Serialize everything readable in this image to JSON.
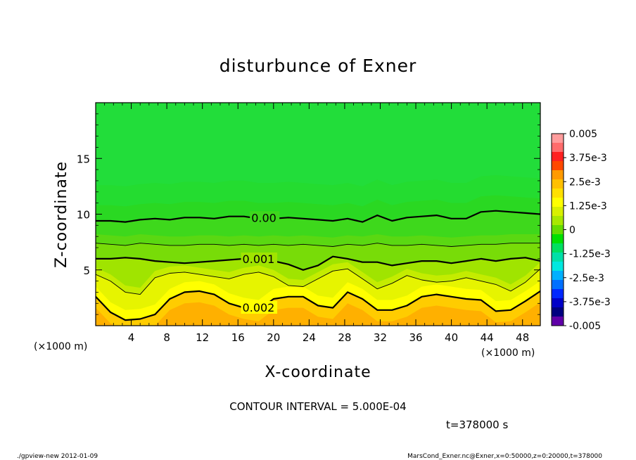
{
  "chart_data": {
    "type": "contour",
    "title": "disturbunce of Exner",
    "xlabel": "X-coordinate",
    "ylabel": "Z-coordinate",
    "x_unit_label_left": "(×1000 m)",
    "x_unit_label_right": "(×1000 m)",
    "xlim": [
      0,
      50
    ],
    "ylim": [
      0,
      20
    ],
    "x_ticks": [
      "4",
      "8",
      "12",
      "16",
      "20",
      "24",
      "28",
      "32",
      "36",
      "40",
      "44",
      "48"
    ],
    "y_ticks": [
      "5",
      "10",
      "15"
    ],
    "contour_interval_text": "CONTOUR INTERVAL = 5.000E-04",
    "time_text": "t=378000 s",
    "contour_labels": [
      "0.00",
      "0.001",
      "0.002"
    ],
    "colorbar": {
      "labels": [
        "0.005",
        "3.75e-3",
        "2.5e-3",
        "1.25e-3",
        "0",
        "-1.25e-3",
        "-2.5e-3",
        "-3.75e-3",
        "-0.005"
      ],
      "colors": [
        "#ff9c9c",
        "#ff6c6c",
        "#ff2020",
        "#ff4800",
        "#ff9a00",
        "#ffc000",
        "#ffe000",
        "#ffff00",
        "#d8f000",
        "#a8e800",
        "#64dc00",
        "#00e000",
        "#00e060",
        "#00e0a8",
        "#00e8e0",
        "#00b0ff",
        "#0070ff",
        "#0028ff",
        "#0000c8",
        "#000080",
        "#6000a8"
      ]
    },
    "contour_levels": [
      {
        "value": 0.0,
        "z": [
          9.4,
          9.4,
          9.3,
          9.5,
          9.6,
          9.5,
          9.7,
          9.7,
          9.6,
          9.8,
          9.8,
          9.6,
          9.6,
          9.7,
          9.6,
          9.5,
          9.4,
          9.6,
          9.3,
          9.9,
          9.4,
          9.7,
          9.8,
          9.9,
          9.6,
          9.6,
          10.2,
          10.3,
          10.2,
          10.1,
          10.0
        ],
        "highlight": true,
        "label": "0.00",
        "label_x": 17.5
      },
      {
        "value": 0.0005,
        "z": [
          7.4,
          7.3,
          7.2,
          7.4,
          7.3,
          7.2,
          7.2,
          7.3,
          7.3,
          7.2,
          7.3,
          7.2,
          7.3,
          7.2,
          7.3,
          7.2,
          7.1,
          7.3,
          7.2,
          7.4,
          7.2,
          7.2,
          7.3,
          7.2,
          7.1,
          7.2,
          7.3,
          7.3,
          7.4,
          7.4,
          7.4
        ],
        "highlight": false
      },
      {
        "value": 0.001,
        "z": [
          6.0,
          6.0,
          6.1,
          6.0,
          5.8,
          5.7,
          5.6,
          5.7,
          5.8,
          5.9,
          6.0,
          5.9,
          5.8,
          5.5,
          5.0,
          5.4,
          6.2,
          6.0,
          5.7,
          5.7,
          5.4,
          5.6,
          5.8,
          5.8,
          5.6,
          5.8,
          6.0,
          5.8,
          6.0,
          6.1,
          5.8
        ],
        "highlight": true,
        "label": "0.001",
        "label_x": 16.5
      },
      {
        "value": 0.0015,
        "z": [
          4.6,
          4.0,
          3.0,
          2.8,
          4.3,
          4.7,
          4.8,
          4.6,
          4.4,
          4.2,
          4.6,
          4.8,
          4.4,
          3.6,
          3.5,
          4.2,
          4.9,
          5.1,
          4.2,
          3.3,
          3.8,
          4.5,
          4.1,
          3.9,
          4.0,
          4.3,
          4.0,
          3.7,
          3.1,
          3.9,
          5.1
        ],
        "highlight": false
      },
      {
        "value": 0.002,
        "z": [
          2.6,
          1.2,
          0.5,
          0.6,
          1.0,
          2.4,
          3.0,
          3.1,
          2.8,
          2.0,
          1.6,
          1.4,
          2.4,
          2.6,
          2.6,
          1.8,
          1.6,
          3.0,
          2.4,
          1.4,
          1.4,
          1.8,
          2.6,
          2.8,
          2.6,
          2.4,
          2.3,
          1.3,
          1.4,
          2.2,
          3.1
        ],
        "highlight": true,
        "label": "0.002",
        "label_x": 16.5
      }
    ]
  },
  "footer": {
    "left": "./gpview-new   2012-01-09",
    "right": "MarsCond_Exner.nc@Exner,x=0:50000,z=0:20000,t=378000"
  }
}
